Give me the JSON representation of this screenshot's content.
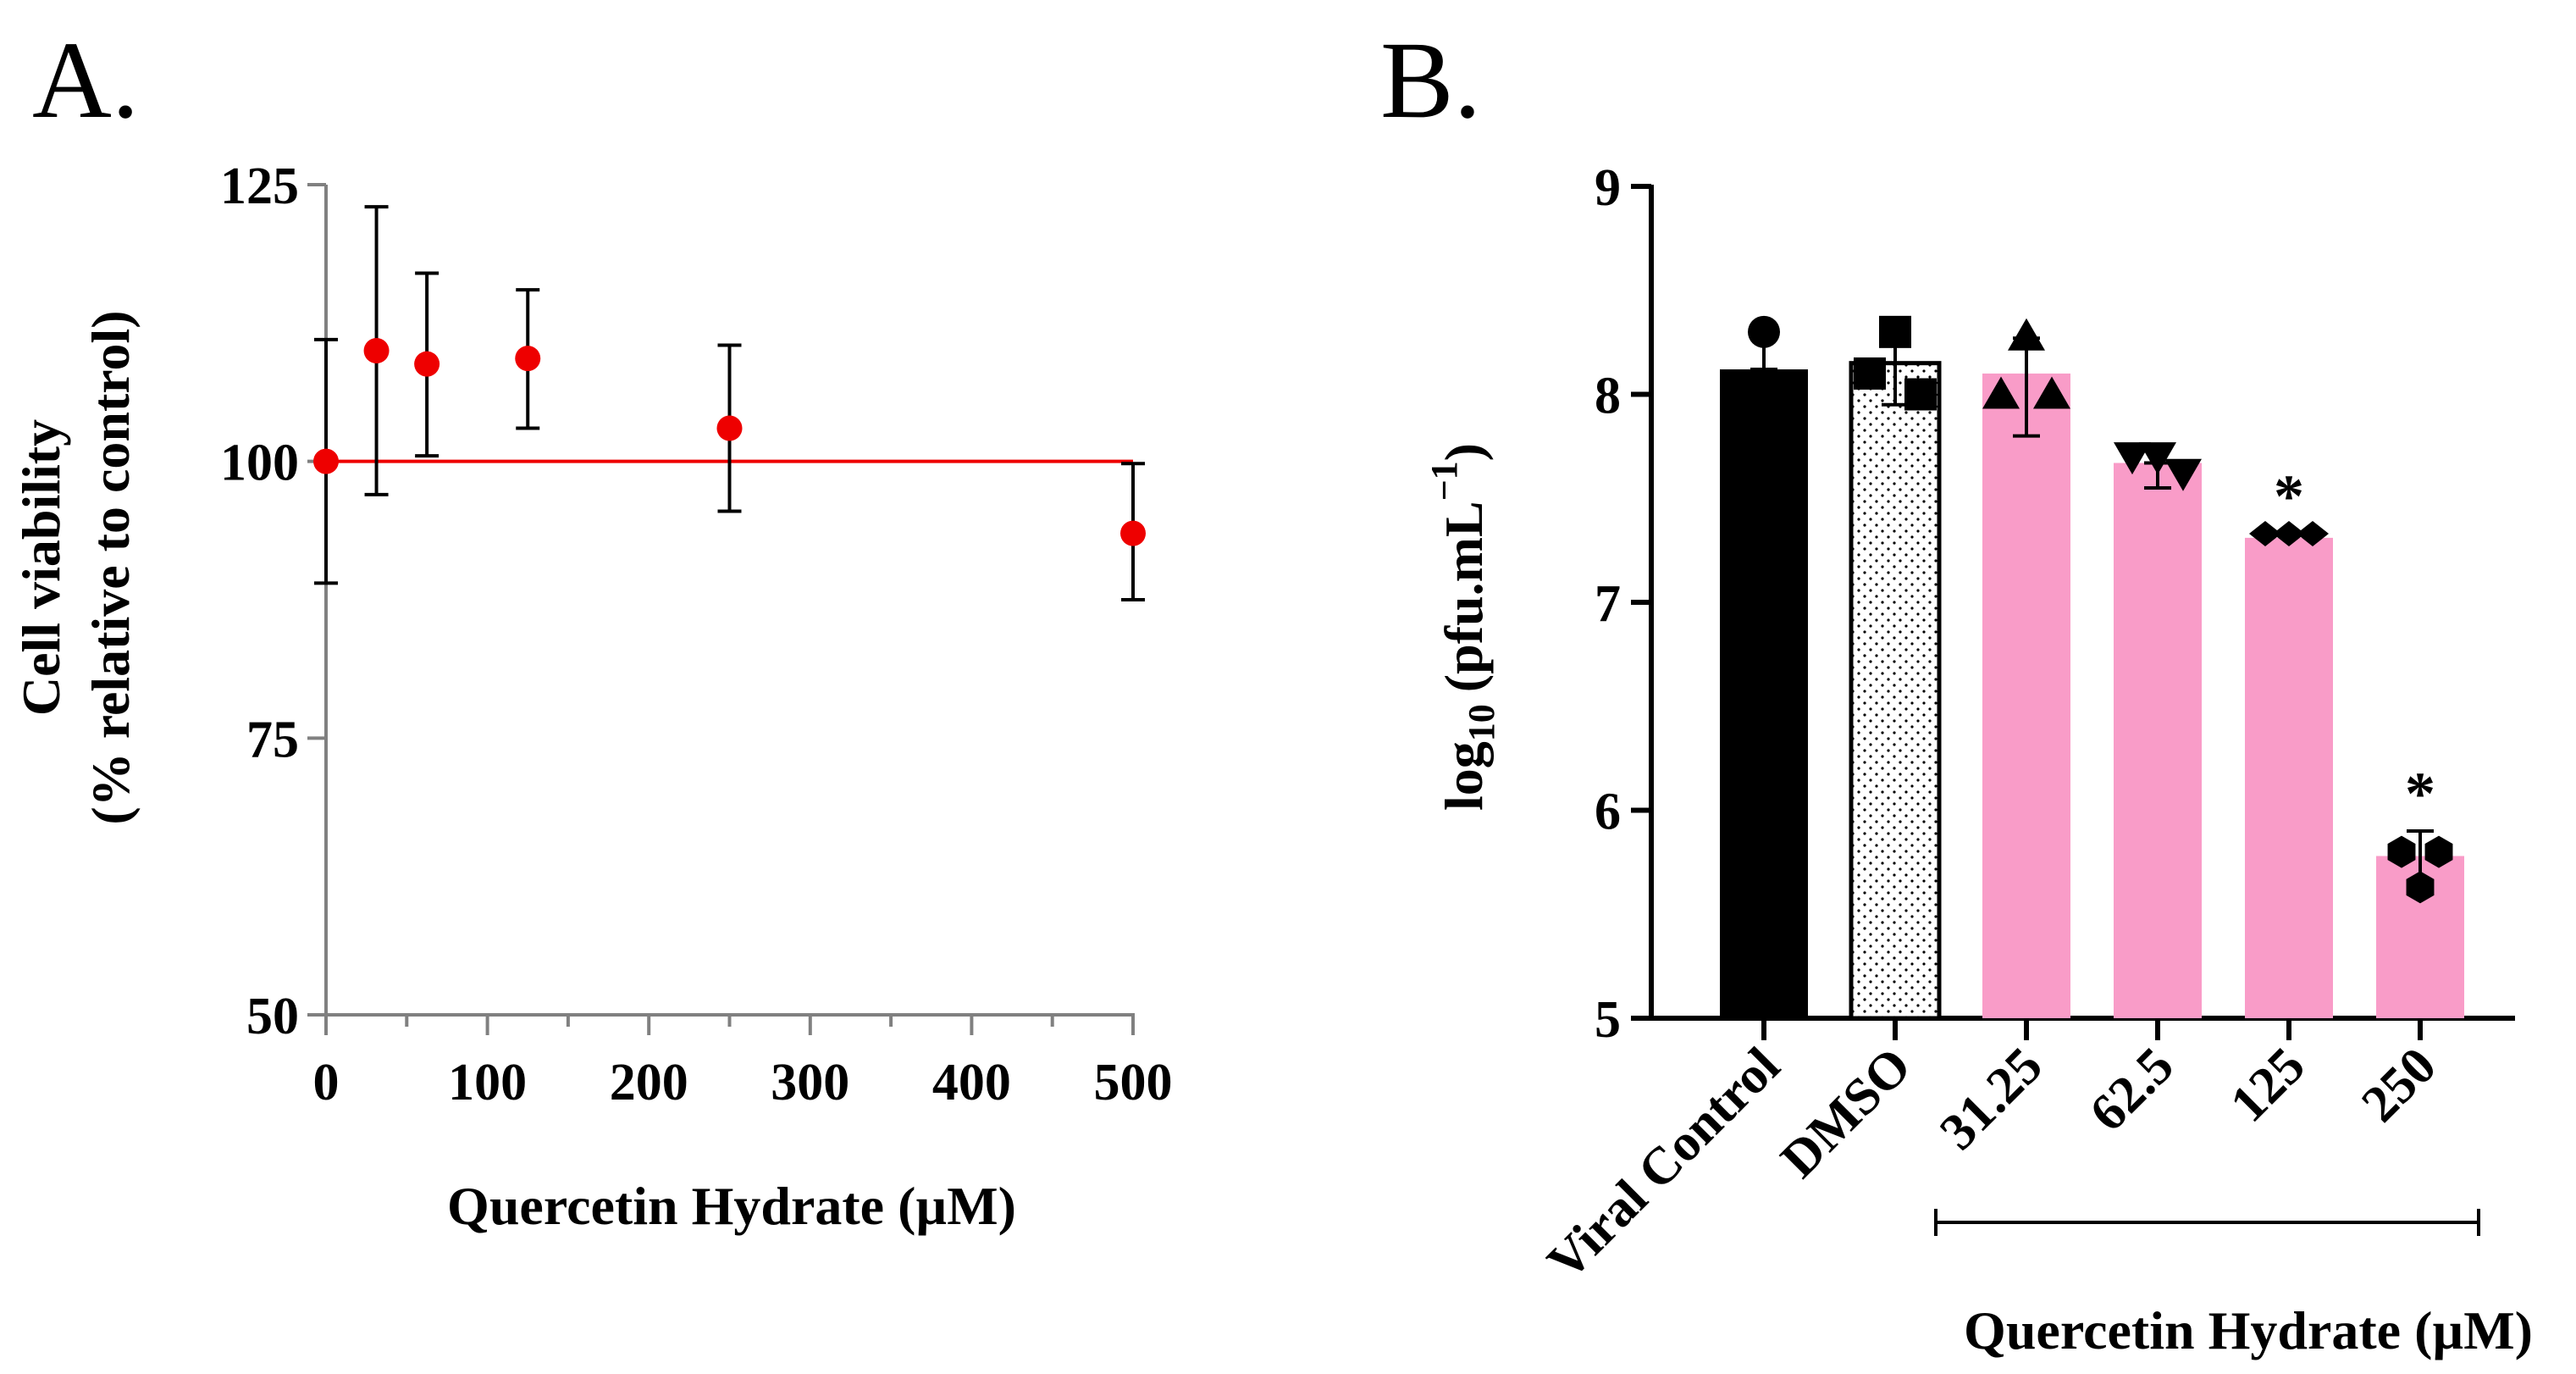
{
  "chart_data": [
    {
      "panel_label": "A.",
      "type": "scatter",
      "xlabel": "Quercetin Hydrate (µM)",
      "ylabel_line1": "Cell viability",
      "ylabel_line2": "(% relative to control)",
      "xlim": [
        0,
        510
      ],
      "ylim": [
        50,
        125
      ],
      "x_ticks": [
        0,
        100,
        200,
        300,
        400,
        500
      ],
      "y_ticks": [
        50,
        75,
        100,
        125
      ],
      "reference_line": 100,
      "colors": {
        "point": "#ee0000",
        "line": "#ee0000",
        "error": "#000000",
        "axis": "#808080"
      },
      "points": [
        {
          "x": 0,
          "y": 100,
          "err_lo": 89,
          "err_hi": 111
        },
        {
          "x": 31.25,
          "y": 110,
          "err_lo": 97,
          "err_hi": 123
        },
        {
          "x": 62.5,
          "y": 108.8,
          "err_lo": 100.5,
          "err_hi": 117
        },
        {
          "x": 125,
          "y": 109.3,
          "err_lo": 103,
          "err_hi": 115.5
        },
        {
          "x": 250,
          "y": 103,
          "err_lo": 95.5,
          "err_hi": 110.5
        },
        {
          "x": 500,
          "y": 93.5,
          "err_lo": 87.5,
          "err_hi": 99.8
        }
      ]
    },
    {
      "panel_label": "B.",
      "type": "bar",
      "ylabel": "log",
      "ylabel_sub": "10",
      "ylabel_rest": "(pfu.mL",
      "ylabel_sup": "−1",
      "ylabel_close": ")",
      "ylim": [
        5,
        9
      ],
      "y_ticks": [
        5,
        6,
        7,
        8,
        9
      ],
      "categories": [
        "Viral Control",
        "DMSO",
        "31.25",
        "62.5",
        "125",
        "250"
      ],
      "values": [
        8.12,
        8.15,
        8.1,
        7.67,
        7.31,
        5.78
      ],
      "err_lo": [
        8.12,
        7.95,
        7.8,
        7.55,
        7.31,
        5.62
      ],
      "err_hi": [
        8.28,
        8.28,
        8.27,
        7.67,
        7.31,
        5.9
      ],
      "replicates": [
        [
          8.3
        ],
        [
          8.1,
          8.3,
          8.0
        ],
        [
          8.0,
          8.28,
          8.0
        ],
        [
          7.7,
          7.7,
          7.62
        ],
        [
          7.33,
          7.33,
          7.33
        ],
        [
          5.8,
          5.8,
          5.63
        ]
      ],
      "markers": [
        "circle",
        "square",
        "triangle-up",
        "triangle-down",
        "diamond",
        "hexagon"
      ],
      "fills": [
        "#000000",
        "dots",
        "#f99cc8",
        "#f99cc8",
        "#f99cc8",
        "#f99cc8"
      ],
      "significance": [
        "",
        "",
        "",
        "",
        "*",
        "*"
      ],
      "group_label": "Quercetin Hydrate (µM)",
      "group_span": [
        "31.25",
        "250"
      ]
    }
  ]
}
